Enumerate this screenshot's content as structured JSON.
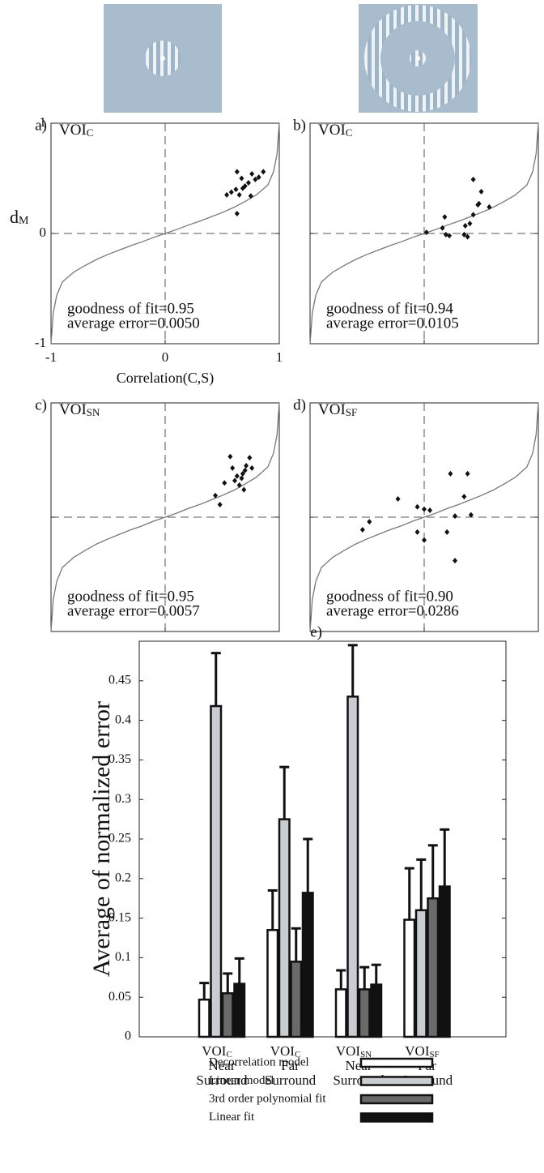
{
  "chart_data": [
    {
      "type": "scatter",
      "panel_label": "a)",
      "region": "VOI",
      "region_sub": "C",
      "ylabel": "d",
      "ylabel_sub": "M",
      "xlabel": "Correlation(C,S)",
      "tick_labels": true,
      "xlim": [
        -1,
        1
      ],
      "ylim": [
        -1,
        1
      ],
      "xticks": [
        -1,
        0,
        1
      ],
      "yticks": [
        -1,
        0,
        1
      ],
      "zero_lines": true,
      "annotations": [
        "goodness of fit=0.95",
        "average error=0.0050"
      ],
      "point_color": "#111",
      "curve_color": "#777",
      "points": {
        "x": [
          0.54,
          0.58,
          0.62,
          0.63,
          0.67,
          0.68,
          0.7,
          0.73,
          0.76,
          0.75,
          0.79,
          0.82,
          0.86,
          0.63,
          0.65
        ],
        "values": [
          0.35,
          0.375,
          0.4,
          0.56,
          0.5,
          0.41,
          0.43,
          0.46,
          0.54,
          0.34,
          0.49,
          0.51,
          0.56,
          0.18,
          0.35
        ]
      },
      "curve": {
        "x": [
          -1,
          -0.98,
          -0.95,
          -0.9,
          -0.8,
          -0.7,
          -0.6,
          -0.5,
          -0.4,
          -0.3,
          -0.2,
          -0.1,
          0,
          0.1,
          0.2,
          0.3,
          0.4,
          0.5,
          0.6,
          0.7,
          0.8,
          0.9,
          0.95,
          0.98,
          1
        ],
        "values": [
          -1,
          -0.72,
          -0.56,
          -0.44,
          -0.35,
          -0.29,
          -0.235,
          -0.19,
          -0.15,
          -0.11,
          -0.075,
          -0.035,
          0,
          0.035,
          0.075,
          0.11,
          0.15,
          0.19,
          0.235,
          0.29,
          0.35,
          0.44,
          0.56,
          0.72,
          1
        ]
      }
    },
    {
      "type": "scatter",
      "panel_label": "b)",
      "region": "VOI",
      "region_sub": "C",
      "tick_labels": false,
      "xlim": [
        -1,
        1
      ],
      "ylim": [
        -1,
        1
      ],
      "xticks": [
        -1,
        0,
        1
      ],
      "yticks": [
        -1,
        0,
        1
      ],
      "zero_lines": true,
      "annotations": [
        "goodness of fit=0.94",
        "average error=0.0105"
      ],
      "point_color": "#111",
      "curve_color": "#777",
      "points": {
        "x": [
          0.02,
          0.16,
          0.18,
          0.19,
          0.22,
          0.35,
          0.38,
          0.36,
          0.4,
          0.43,
          0.47,
          0.48,
          0.43,
          0.5,
          0.57
        ],
        "values": [
          0.01,
          0.05,
          0.15,
          -0.01,
          -0.02,
          -0.01,
          -0.03,
          0.07,
          0.09,
          0.17,
          0.26,
          0.27,
          0.49,
          0.38,
          0.24
        ]
      },
      "curve": {
        "x": [
          -1,
          -0.98,
          -0.95,
          -0.9,
          -0.8,
          -0.7,
          -0.6,
          -0.5,
          -0.4,
          -0.3,
          -0.2,
          -0.1,
          0,
          0.1,
          0.2,
          0.3,
          0.4,
          0.5,
          0.6,
          0.7,
          0.8,
          0.9,
          0.95,
          0.98,
          1
        ],
        "values": [
          -1,
          -0.72,
          -0.56,
          -0.44,
          -0.35,
          -0.29,
          -0.235,
          -0.19,
          -0.15,
          -0.11,
          -0.075,
          -0.035,
          0,
          0.035,
          0.075,
          0.11,
          0.15,
          0.19,
          0.235,
          0.29,
          0.35,
          0.44,
          0.56,
          0.72,
          1
        ]
      }
    },
    {
      "type": "scatter",
      "panel_label": "c)",
      "region": "VOI",
      "region_sub": "SN",
      "tick_labels": false,
      "xlim": [
        -1,
        1
      ],
      "ylim": [
        -1,
        1
      ],
      "xticks": [
        -1,
        0,
        1
      ],
      "yticks": [
        -1,
        0,
        1
      ],
      "zero_lines": true,
      "annotations": [
        "goodness of fit=0.95",
        "average error=0.0057"
      ],
      "point_color": "#111",
      "curve_color": "#777",
      "points": {
        "x": [
          0.44,
          0.48,
          0.52,
          0.57,
          0.59,
          0.61,
          0.63,
          0.65,
          0.67,
          0.68,
          0.7,
          0.69,
          0.71,
          0.74,
          0.76
        ],
        "values": [
          0.19,
          0.11,
          0.3,
          0.53,
          0.43,
          0.32,
          0.36,
          0.28,
          0.34,
          0.38,
          0.41,
          0.24,
          0.45,
          0.52,
          0.43
        ]
      },
      "curve": {
        "x": [
          -1,
          -0.98,
          -0.95,
          -0.9,
          -0.8,
          -0.7,
          -0.6,
          -0.5,
          -0.4,
          -0.3,
          -0.2,
          -0.1,
          0,
          0.1,
          0.2,
          0.3,
          0.4,
          0.5,
          0.6,
          0.7,
          0.8,
          0.9,
          0.95,
          0.98,
          1
        ],
        "values": [
          -1,
          -0.72,
          -0.56,
          -0.44,
          -0.35,
          -0.29,
          -0.235,
          -0.19,
          -0.15,
          -0.11,
          -0.075,
          -0.035,
          0,
          0.035,
          0.075,
          0.11,
          0.15,
          0.19,
          0.235,
          0.29,
          0.35,
          0.44,
          0.56,
          0.72,
          1
        ]
      }
    },
    {
      "type": "scatter",
      "panel_label": "d)",
      "region": "VOI",
      "region_sub": "SF",
      "tick_labels": false,
      "xlim": [
        -1,
        1
      ],
      "ylim": [
        -1,
        1
      ],
      "xticks": [
        -1,
        0,
        1
      ],
      "yticks": [
        -1,
        0,
        1
      ],
      "zero_lines": true,
      "annotations": [
        "goodness of fit=0.90",
        "average error=0.0286"
      ],
      "point_color": "#111",
      "curve_color": "#777",
      "points": {
        "x": [
          -0.54,
          -0.48,
          -0.23,
          -0.06,
          -0.06,
          0,
          0,
          0.05,
          0.2,
          0.23,
          0.27,
          0.27,
          0.35,
          0.38,
          0.41
        ],
        "values": [
          -0.11,
          -0.04,
          0.16,
          0.09,
          -0.13,
          -0.2,
          0.07,
          0.06,
          -0.13,
          0.38,
          0.01,
          -0.38,
          0.18,
          0.38,
          0.02
        ]
      },
      "curve": {
        "x": [
          -1,
          -0.98,
          -0.95,
          -0.9,
          -0.8,
          -0.7,
          -0.6,
          -0.5,
          -0.4,
          -0.3,
          -0.2,
          -0.1,
          0,
          0.1,
          0.2,
          0.3,
          0.4,
          0.5,
          0.6,
          0.7,
          0.8,
          0.9,
          0.95,
          0.98,
          1
        ],
        "values": [
          -1,
          -0.72,
          -0.56,
          -0.44,
          -0.35,
          -0.29,
          -0.235,
          -0.19,
          -0.15,
          -0.11,
          -0.075,
          -0.035,
          0,
          0.035,
          0.075,
          0.11,
          0.15,
          0.19,
          0.235,
          0.29,
          0.35,
          0.44,
          0.56,
          0.72,
          1
        ]
      }
    },
    {
      "type": "bar",
      "panel_label": "e)",
      "ylabel": "Average of normalized error",
      "ylim": [
        0,
        0.5
      ],
      "yticks": [
        0,
        0.05,
        0.1,
        0.15,
        0.2,
        0.25,
        0.3,
        0.35,
        0.4,
        0.45
      ],
      "categories": [
        {
          "region": "VOI",
          "sub": "C",
          "line1": "Near",
          "line2": "Surround"
        },
        {
          "region": "VOI",
          "sub": "C",
          "line1": "Far",
          "line2": "Surround"
        },
        {
          "region": "VOI",
          "sub": "SN",
          "line1": "Near",
          "line2": "Surround"
        },
        {
          "region": "VOI",
          "sub": "SF",
          "line1": "Far",
          "line2": "Surround"
        }
      ],
      "series": [
        {
          "name": "Decorrelation model",
          "color": "#ffffff",
          "values": [
            0.047,
            0.135,
            0.06,
            0.148
          ],
          "errors": [
            0.021,
            0.05,
            0.024,
            0.065
          ]
        },
        {
          "name": "Linear model",
          "color": "#c9cdd1",
          "values": [
            0.418,
            0.275,
            0.43,
            0.16
          ],
          "errors": [
            0.067,
            0.066,
            0.065,
            0.064
          ]
        },
        {
          "name": "3rd order polynomial fit",
          "color": "#6a6a6a",
          "values": [
            0.055,
            0.095,
            0.06,
            0.175
          ],
          "errors": [
            0.025,
            0.042,
            0.028,
            0.067
          ]
        },
        {
          "name": "Linear fit",
          "color": "#111111",
          "values": [
            0.067,
            0.182,
            0.066,
            0.19
          ],
          "errors": [
            0.032,
            0.068,
            0.025,
            0.072
          ]
        }
      ]
    }
  ]
}
